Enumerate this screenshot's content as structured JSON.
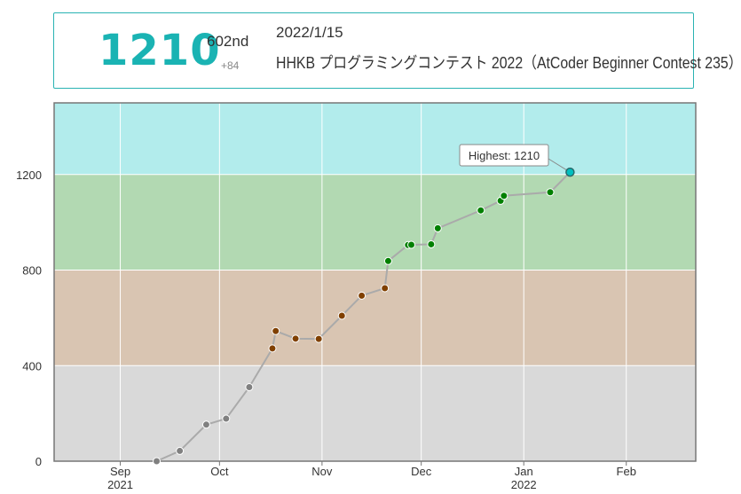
{
  "header": {
    "rating": "1210",
    "place": "602nd",
    "diff": "+84",
    "date": "2022/1/15",
    "contest": "HHKB プログラミングコンテスト 2022（AtCoder Beginner Contest 235）"
  },
  "colors": {
    "rating_text": "#1ab3b3",
    "card_border": "#2ab3b3",
    "band_gray": "#d9d9d9",
    "band_brown": "#d9c5b2",
    "band_green": "#b2d9b2",
    "band_cyan": "#b2ecec",
    "dot_gray": "#808080",
    "dot_brown": "#804000",
    "dot_green": "#008000",
    "dot_cyan": "#00c0c0",
    "line": "#aaaaaa"
  },
  "chart_data": {
    "type": "line",
    "title": "",
    "xlabel": "",
    "ylabel": "",
    "ylim": [
      0,
      1500
    ],
    "xlim": [
      "2021-08-12",
      "2022-02-22"
    ],
    "grid": true,
    "yticks": [
      0,
      400,
      800,
      1200
    ],
    "ytick_labels": [
      "0",
      "400",
      "800",
      "1200"
    ],
    "xticks": [
      {
        "date": "2021-09-01",
        "label": "Sep",
        "sublabel": "2021"
      },
      {
        "date": "2021-10-01",
        "label": "Oct",
        "sublabel": ""
      },
      {
        "date": "2021-11-01",
        "label": "Nov",
        "sublabel": ""
      },
      {
        "date": "2021-12-01",
        "label": "Dec",
        "sublabel": ""
      },
      {
        "date": "2022-01-01",
        "label": "Jan",
        "sublabel": "2022"
      },
      {
        "date": "2022-02-01",
        "label": "Feb",
        "sublabel": ""
      }
    ],
    "bands": [
      {
        "from": 0,
        "to": 400,
        "color": "#d9d9d9"
      },
      {
        "from": 400,
        "to": 800,
        "color": "#d9c5b2"
      },
      {
        "from": 800,
        "to": 1200,
        "color": "#b2d9b2"
      },
      {
        "from": 1200,
        "to": 1500,
        "color": "#b2ecec"
      }
    ],
    "series": [
      {
        "x": [
          "2021-09-12",
          "2021-09-19",
          "2021-09-27",
          "2021-10-03",
          "2021-10-10",
          "2021-10-17",
          "2021-10-18",
          "2021-10-24",
          "2021-10-31",
          "2021-11-07",
          "2021-11-13",
          "2021-11-20",
          "2021-11-21",
          "2021-11-27",
          "2021-11-28",
          "2021-12-04",
          "2021-12-06",
          "2021-12-19",
          "2021-12-25",
          "2021-12-26",
          "2022-01-09",
          "2022-01-15"
        ],
        "y": [
          0,
          43,
          153,
          178,
          310,
          472,
          545,
          513,
          512,
          609,
          693,
          724,
          838,
          905,
          906,
          908,
          975,
          1050,
          1090,
          1111,
          1126,
          1210
        ]
      }
    ],
    "annotation": {
      "text": "Highest: 1210",
      "x": "2022-01-15",
      "y": 1210
    }
  }
}
